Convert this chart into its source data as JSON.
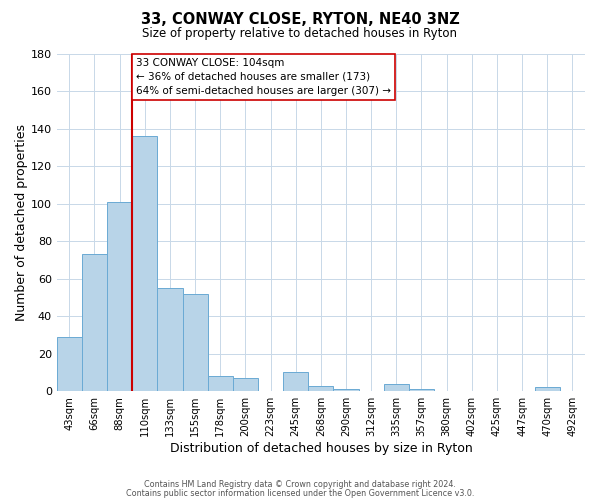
{
  "title": "33, CONWAY CLOSE, RYTON, NE40 3NZ",
  "subtitle": "Size of property relative to detached houses in Ryton",
  "xlabel": "Distribution of detached houses by size in Ryton",
  "ylabel": "Number of detached properties",
  "bar_labels": [
    "43sqm",
    "66sqm",
    "88sqm",
    "110sqm",
    "133sqm",
    "155sqm",
    "178sqm",
    "200sqm",
    "223sqm",
    "245sqm",
    "268sqm",
    "290sqm",
    "312sqm",
    "335sqm",
    "357sqm",
    "380sqm",
    "402sqm",
    "425sqm",
    "447sqm",
    "470sqm",
    "492sqm"
  ],
  "bar_values": [
    29,
    73,
    101,
    136,
    55,
    52,
    8,
    7,
    0,
    10,
    3,
    1,
    0,
    4,
    1,
    0,
    0,
    0,
    0,
    2,
    0
  ],
  "bar_color": "#b8d4e8",
  "bar_edge_color": "#6aaad4",
  "vline_color": "#cc0000",
  "ylim": [
    0,
    180
  ],
  "yticks": [
    0,
    20,
    40,
    60,
    80,
    100,
    120,
    140,
    160,
    180
  ],
  "annotation_text": "33 CONWAY CLOSE: 104sqm\n← 36% of detached houses are smaller (173)\n64% of semi-detached houses are larger (307) →",
  "annotation_box_color": "#ffffff",
  "annotation_box_edge": "#cc0000",
  "footer_line1": "Contains HM Land Registry data © Crown copyright and database right 2024.",
  "footer_line2": "Contains public sector information licensed under the Open Government Licence v3.0.",
  "background_color": "#ffffff",
  "grid_color": "#c8d8e8"
}
